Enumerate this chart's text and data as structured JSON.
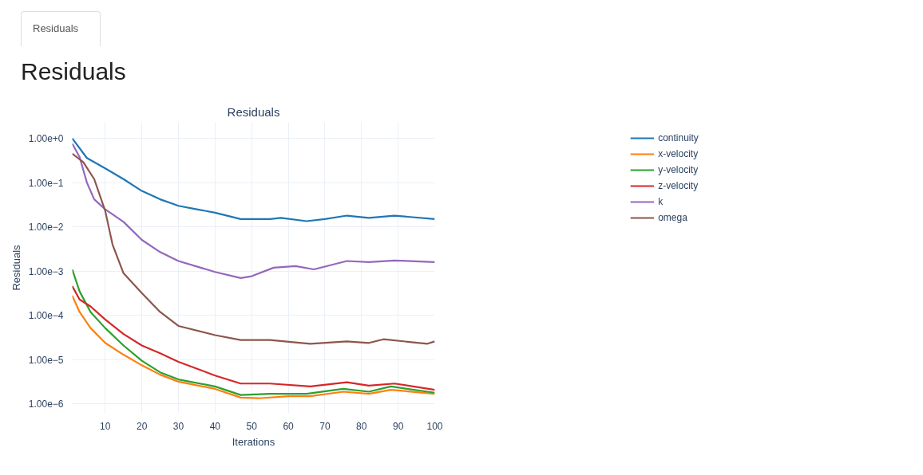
{
  "chart_data": {
    "type": "line",
    "title": "Residuals",
    "xlabel": "Iterations",
    "ylabel": "Residuals",
    "annotations": [
      "Residuals",
      "Residuals"
    ],
    "log": "y",
    "grid": true,
    "legend": "top right",
    "line_style": "solid",
    "xlim": [
      1,
      100
    ],
    "xticks": [
      10,
      20,
      30,
      40,
      50,
      60,
      70,
      80,
      90,
      100
    ],
    "ylim": [
      6.2e-07,
      2.3
    ],
    "yticks": [
      {
        "value": 1,
        "label": "1.00e+0"
      },
      {
        "value": 0.1,
        "label": "1.00e−1"
      },
      {
        "value": 0.01,
        "label": "1.00e−2"
      },
      {
        "value": 0.001,
        "label": "1.00e−3"
      },
      {
        "value": 0.0001,
        "label": "1.00e−4"
      },
      {
        "value": 1e-05,
        "label": "1.00e−5"
      },
      {
        "value": 1e-06,
        "label": "1.00e−6"
      }
    ],
    "series": [
      {
        "name": "continuity",
        "color": "#1f77b4",
        "x": [
          1,
          5,
          10,
          15,
          20,
          25,
          30,
          35,
          40,
          47,
          55,
          58,
          65,
          70,
          76,
          82,
          89,
          100
        ],
        "values": [
          1.0,
          0.36,
          0.21,
          0.12,
          0.065,
          0.042,
          0.03,
          0.025,
          0.021,
          0.015,
          0.015,
          0.016,
          0.0135,
          0.015,
          0.018,
          0.016,
          0.018,
          0.015
        ]
      },
      {
        "name": "x-velocity",
        "color": "#ff7f0e",
        "x": [
          1,
          3,
          6,
          10,
          15,
          20,
          25,
          30,
          40,
          47,
          52,
          60,
          66,
          75,
          82,
          88,
          100
        ],
        "values": [
          0.00028,
          0.00012,
          5.2e-05,
          2.4e-05,
          1.3e-05,
          7.5e-06,
          4.6e-06,
          3.2e-06,
          2.2e-06,
          1.4e-06,
          1.35e-06,
          1.5e-06,
          1.5e-06,
          1.9e-06,
          1.7e-06,
          2.1e-06,
          1.7e-06
        ]
      },
      {
        "name": "y-velocity",
        "color": "#2ca02c",
        "x": [
          1,
          3,
          6,
          10,
          15,
          20,
          25,
          30,
          40,
          47,
          55,
          65,
          75,
          82,
          88,
          100
        ],
        "values": [
          0.0011,
          0.00035,
          0.00012,
          5.2e-05,
          2.1e-05,
          9.5e-06,
          5.2e-06,
          3.6e-06,
          2.5e-06,
          1.6e-06,
          1.7e-06,
          1.7e-06,
          2.2e-06,
          1.9e-06,
          2.5e-06,
          1.8e-06
        ]
      },
      {
        "name": "z-velocity",
        "color": "#d62728",
        "x": [
          1,
          3,
          6,
          10,
          15,
          20,
          25,
          30,
          40,
          47,
          55,
          66,
          76,
          82,
          89,
          100
        ],
        "values": [
          0.00046,
          0.00023,
          0.00016,
          8.1e-05,
          3.8e-05,
          2.1e-05,
          1.4e-05,
          9e-06,
          4.4e-06,
          2.9e-06,
          2.9e-06,
          2.5e-06,
          3.1e-06,
          2.6e-06,
          2.9e-06,
          2.1e-06
        ]
      },
      {
        "name": "k",
        "color": "#9467bd",
        "x": [
          1,
          3,
          5,
          7,
          10,
          15,
          20,
          25,
          30,
          40,
          47,
          50,
          56,
          62,
          67,
          76,
          82,
          89,
          100
        ],
        "values": [
          0.76,
          0.38,
          0.1,
          0.042,
          0.025,
          0.013,
          0.0051,
          0.0027,
          0.0017,
          0.00096,
          0.0007,
          0.00077,
          0.0012,
          0.0013,
          0.0011,
          0.0017,
          0.0016,
          0.00175,
          0.0016
        ]
      },
      {
        "name": "omega",
        "color": "#8c564b",
        "x": [
          1,
          4,
          7,
          10,
          12,
          15,
          20,
          25,
          30,
          40,
          47,
          55,
          66,
          76,
          82,
          86,
          98,
          100
        ],
        "values": [
          0.45,
          0.29,
          0.12,
          0.023,
          0.004,
          0.0009,
          0.00032,
          0.00012,
          5.8e-05,
          3.6e-05,
          2.8e-05,
          2.8e-05,
          2.3e-05,
          2.6e-05,
          2.4e-05,
          2.9e-05,
          2.3e-05,
          2.6e-05
        ]
      }
    ]
  }
}
